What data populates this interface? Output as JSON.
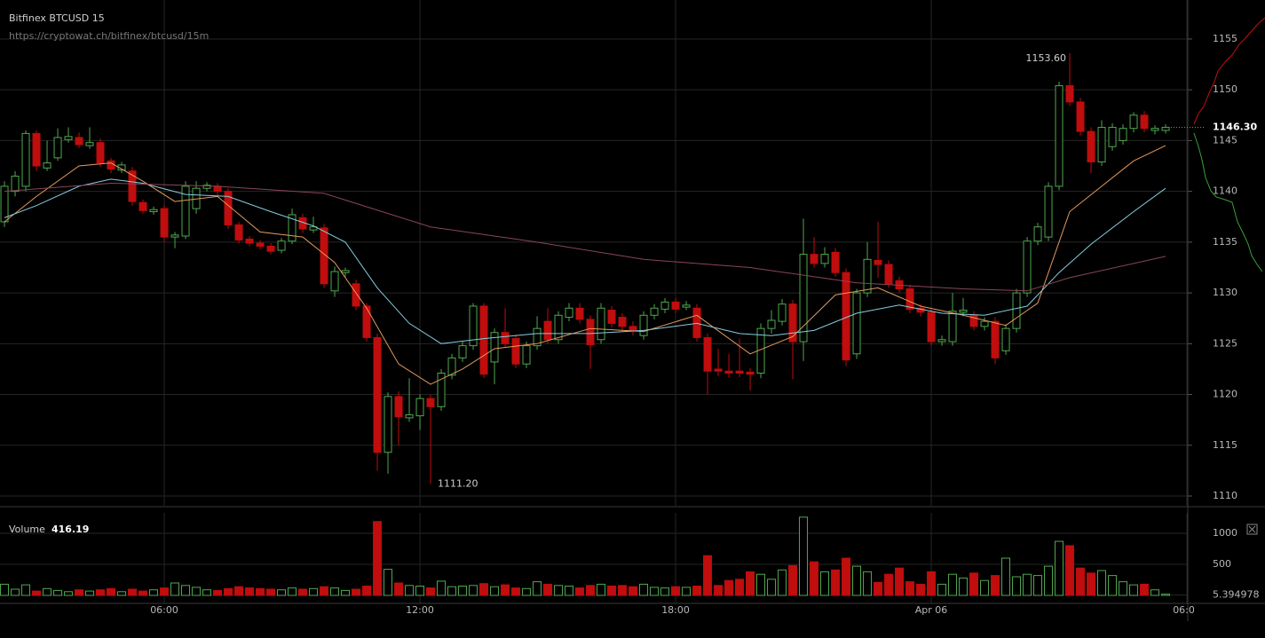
{
  "chart_data": {
    "type": "candlestick",
    "title": "Bitfinex BTCUSD 15",
    "subtitle": "https://cryptowat.ch/bitfinex/btcusd/15m",
    "up_color": "#4fa84f",
    "down_color": "#c00d0d",
    "grid": true,
    "xlim": [
      -0.42,
      111.08
    ],
    "xticks": [
      {
        "value": 15,
        "label": "06:00"
      },
      {
        "value": 39,
        "label": "12:00"
      },
      {
        "value": 63,
        "label": "18:00"
      },
      {
        "value": 87,
        "label": "Apr 06"
      },
      {
        "value": 111,
        "label": "06:00"
      }
    ],
    "ylim": [
      1109.04,
      1158.84
    ],
    "yticks": [
      1110,
      1115,
      1120,
      1125,
      1130,
      1135,
      1140,
      1145,
      1150,
      1155
    ],
    "open": [
      1137,
      1140,
      1140.5,
      1145.7,
      1142.3,
      1143.3,
      1145.1,
      1145.3,
      1144.5,
      1144.8,
      1143,
      1142.1,
      1142,
      1138.9,
      1138,
      1138.3,
      1135.5,
      1135.6,
      1138.3,
      1140.3,
      1140.5,
      1140,
      1136.7,
      1135.3,
      1134.9,
      1134.6,
      1134.2,
      1135.1,
      1137.4,
      1136.2,
      1136.4,
      1130.2,
      1132,
      1130.9,
      1128.7,
      1125.6,
      1114.3,
      1119.8,
      1117.7,
      1117.9,
      1119.6,
      1118.8,
      1121.9,
      1123.6,
      1124.8,
      1128.7,
      1123.2,
      1126.1,
      1125.5,
      1123,
      1124.8,
      1127.2,
      1125.4,
      1127.6,
      1128.5,
      1127.4,
      1125.4,
      1128.3,
      1127.6,
      1126.7,
      1125.8,
      1127.8,
      1128.4,
      1129.1,
      1128.6,
      1128.5,
      1125.6,
      1122.5,
      1122.3,
      1122.3,
      1122.2,
      1122.1,
      1126.5,
      1127.2,
      1128.9,
      1125.2,
      1133.8,
      1132.9,
      1134,
      1132,
      1124,
      1130,
      1133.2,
      1132.8,
      1131.2,
      1130.4,
      1128.5,
      1128.1,
      1125.2,
      1125.2,
      1128.1,
      1127.8,
      1126.7,
      1127.2,
      1124.3,
      1126.5,
      1130,
      1135.1,
      1135.5,
      1140.5,
      1150.4,
      1148.8,
      1145.9,
      1142.9,
      1144.4,
      1145,
      1146.2,
      1147.5,
      1146,
      1146
    ],
    "high": [
      1141,
      1142,
      1146,
      1146,
      1145,
      1146.2,
      1146.3,
      1145.8,
      1146.3,
      1145.2,
      1143.3,
      1142.9,
      1142.4,
      1139.2,
      1138.5,
      1138.7,
      1136,
      1141,
      1141,
      1140.9,
      1140.8,
      1140.3,
      1137,
      1135.6,
      1135.2,
      1134.9,
      1135.4,
      1138.3,
      1137.8,
      1137.5,
      1136.8,
      1132.6,
      1132.5,
      1131.3,
      1129,
      1126,
      1120.2,
      1120.3,
      1121.6,
      1120,
      1120,
      1122.5,
      1124,
      1125.2,
      1129,
      1129,
      1126.5,
      1128.5,
      1125.9,
      1125.2,
      1127.7,
      1128.5,
      1128.2,
      1129,
      1129,
      1127.8,
      1129,
      1128.7,
      1128,
      1127.2,
      1128.2,
      1128.9,
      1129.5,
      1129.5,
      1129.2,
      1128.9,
      1126,
      1124.5,
      1124,
      1125.5,
      1122.6,
      1127,
      1128.3,
      1129.4,
      1129.3,
      1137.3,
      1135.5,
      1134.5,
      1134.4,
      1132.4,
      1130.4,
      1135,
      1137,
      1133.2,
      1131.6,
      1130.8,
      1128.9,
      1128.5,
      1125.8,
      1130,
      1129.5,
      1128.2,
      1127.6,
      1127.6,
      1126.9,
      1130.4,
      1135.5,
      1136.9,
      1140.9,
      1150.8,
      1153.6,
      1149.2,
      1146.3,
      1147,
      1146.7,
      1146.6,
      1147.8,
      1147.9,
      1146.5,
      1146.6
    ],
    "low": [
      1136.5,
      1139.5,
      1140,
      1142,
      1142,
      1143,
      1144.8,
      1144.3,
      1144.2,
      1142.4,
      1141.8,
      1141.8,
      1138.6,
      1137.8,
      1137.7,
      1135,
      1134.4,
      1135.3,
      1137.8,
      1140,
      1139.6,
      1136.3,
      1134.9,
      1134.6,
      1134.3,
      1133.8,
      1133.9,
      1134.8,
      1135.9,
      1135.9,
      1130.5,
      1129.6,
      1131.6,
      1128.3,
      1125.2,
      1112.5,
      1112.2,
      1115,
      1117.3,
      1116.5,
      1111.2,
      1118.4,
      1121.5,
      1123.2,
      1124.4,
      1121.6,
      1121,
      1124.6,
      1122.6,
      1122.6,
      1124.4,
      1125,
      1125,
      1127.2,
      1127,
      1122.5,
      1125,
      1126.6,
      1126.3,
      1125.8,
      1125.4,
      1127.4,
      1128,
      1128,
      1128.3,
      1125.2,
      1120,
      1121.8,
      1121.7,
      1121.7,
      1120.4,
      1121.6,
      1126,
      1126.8,
      1121.5,
      1123.3,
      1132.5,
      1132.5,
      1131.6,
      1122.8,
      1123.5,
      1129.6,
      1131.5,
      1130.5,
      1130,
      1128,
      1127.7,
      1124.8,
      1124.8,
      1124.8,
      1127.7,
      1126.3,
      1126.3,
      1123,
      1123.9,
      1126.1,
      1129.6,
      1134.7,
      1135.1,
      1140.1,
      1148.4,
      1145.5,
      1141.8,
      1142.5,
      1144,
      1144.6,
      1145.8,
      1145.8,
      1145.6,
      1145.7
    ],
    "close": [
      1140.5,
      1141.5,
      1145.7,
      1142.5,
      1142.8,
      1145.3,
      1145.4,
      1144.6,
      1144.8,
      1142.8,
      1142.2,
      1142.6,
      1139,
      1138.1,
      1138.2,
      1135.5,
      1135.7,
      1140.5,
      1140.3,
      1140.6,
      1140,
      1136.7,
      1135.2,
      1134.9,
      1134.6,
      1134.1,
      1135.1,
      1137.7,
      1136.3,
      1136.5,
      1130.9,
      1132.1,
      1132.2,
      1128.7,
      1125.6,
      1114.3,
      1119.8,
      1117.8,
      1118,
      1119.6,
      1118.8,
      1122.1,
      1123.6,
      1124.8,
      1128.7,
      1122,
      1126.1,
      1125,
      1123,
      1124.8,
      1126.5,
      1125.4,
      1127.8,
      1128.5,
      1127.4,
      1124.9,
      1128.5,
      1127,
      1126.7,
      1126.3,
      1127.8,
      1128.5,
      1129.1,
      1128.4,
      1128.8,
      1125.6,
      1122.3,
      1122.3,
      1122.1,
      1122.1,
      1122,
      1126.5,
      1127.3,
      1128.9,
      1125.2,
      1133.8,
      1132.9,
      1133.8,
      1132,
      1123.4,
      1130,
      1133.3,
      1132.8,
      1130.9,
      1130.4,
      1128.4,
      1128.1,
      1125.2,
      1125.4,
      1128.2,
      1128.3,
      1126.7,
      1127.2,
      1123.6,
      1126.5,
      1130,
      1135.1,
      1136.5,
      1140.5,
      1150.4,
      1148.8,
      1145.9,
      1142.9,
      1146.3,
      1146.3,
      1146.2,
      1147.5,
      1146.2,
      1146.2,
      1146.3
    ],
    "lines": [
      {
        "color": "#e39a5e",
        "x": [
          0,
          3,
          7,
          10,
          13,
          16,
          20,
          24,
          28,
          31,
          34,
          37,
          40,
          43,
          46,
          50,
          55,
          60,
          65,
          70,
          74,
          78,
          82,
          86,
          90,
          94,
          97,
          100,
          103,
          106,
          109
        ],
        "values": [
          1137,
          1139.5,
          1142.5,
          1142.8,
          1141,
          1139,
          1139.5,
          1136,
          1135.5,
          1133,
          1128.5,
          1123,
          1121,
          1122.5,
          1124.5,
          1125,
          1126.5,
          1126.2,
          1127.8,
          1124,
          1125.7,
          1129.8,
          1130.5,
          1128.7,
          1127.8,
          1126.8,
          1129,
          1138,
          1140.5,
          1143,
          1144.5
        ]
      },
      {
        "color": "#86cde0",
        "x": [
          0,
          3,
          7,
          10,
          13,
          17,
          21,
          25,
          29,
          32,
          35,
          38,
          41,
          45,
          50,
          55,
          60,
          65,
          69,
          72,
          76,
          80,
          84,
          88,
          92,
          96,
          99,
          102,
          106,
          109
        ],
        "values": [
          1137.4,
          1138.6,
          1140.5,
          1141.2,
          1140.8,
          1139.7,
          1139.5,
          1138,
          1136.6,
          1135,
          1130.5,
          1127,
          1125,
          1125.5,
          1126,
          1126,
          1126.3,
          1127,
          1126,
          1125.8,
          1126.3,
          1128,
          1128.8,
          1128,
          1127.8,
          1128.7,
          1132,
          1134.8,
          1138,
          1140.3
        ]
      },
      {
        "color": "#8a4655",
        "x": [
          0,
          10,
          20,
          30,
          40,
          50,
          60,
          70,
          80,
          90,
          96,
          100,
          109
        ],
        "values": [
          1140,
          1140.8,
          1140.5,
          1139.8,
          1136.5,
          1135,
          1133.3,
          1132.5,
          1131,
          1130.4,
          1130.2,
          1131.5,
          1133.6
        ]
      }
    ],
    "annotations": [
      {
        "value": 1153.6,
        "label": "1153.60"
      },
      {
        "value": 1111.2,
        "label": "1111.20"
      }
    ],
    "last_price": {
      "value": 1146.3,
      "label": "1146.30"
    },
    "volume": {
      "label": "Volume",
      "current": 416.19,
      "ylim": [
        -128.6,
        1328.6
      ],
      "yticks": [
        5.394978,
        500,
        1000
      ],
      "values": [
        180,
        100,
        170,
        70,
        110,
        80,
        60,
        90,
        70,
        90,
        110,
        60,
        100,
        70,
        90,
        120,
        200,
        160,
        130,
        90,
        80,
        110,
        140,
        120,
        110,
        100,
        90,
        120,
        100,
        110,
        140,
        120,
        80,
        100,
        150,
        1190,
        420,
        200,
        160,
        150,
        120,
        230,
        140,
        150,
        160,
        190,
        140,
        170,
        120,
        110,
        220,
        180,
        160,
        150,
        120,
        160,
        180,
        150,
        160,
        140,
        180,
        130,
        120,
        140,
        130,
        150,
        640,
        160,
        240,
        260,
        380,
        340,
        260,
        410,
        480,
        1260,
        540,
        380,
        410,
        600,
        470,
        380,
        210,
        340,
        440,
        220,
        180,
        380,
        180,
        340,
        280,
        360,
        240,
        320,
        600,
        300,
        340,
        320,
        470,
        870,
        800,
        440,
        360,
        400,
        320,
        220,
        170,
        180,
        90,
        20
      ]
    }
  }
}
